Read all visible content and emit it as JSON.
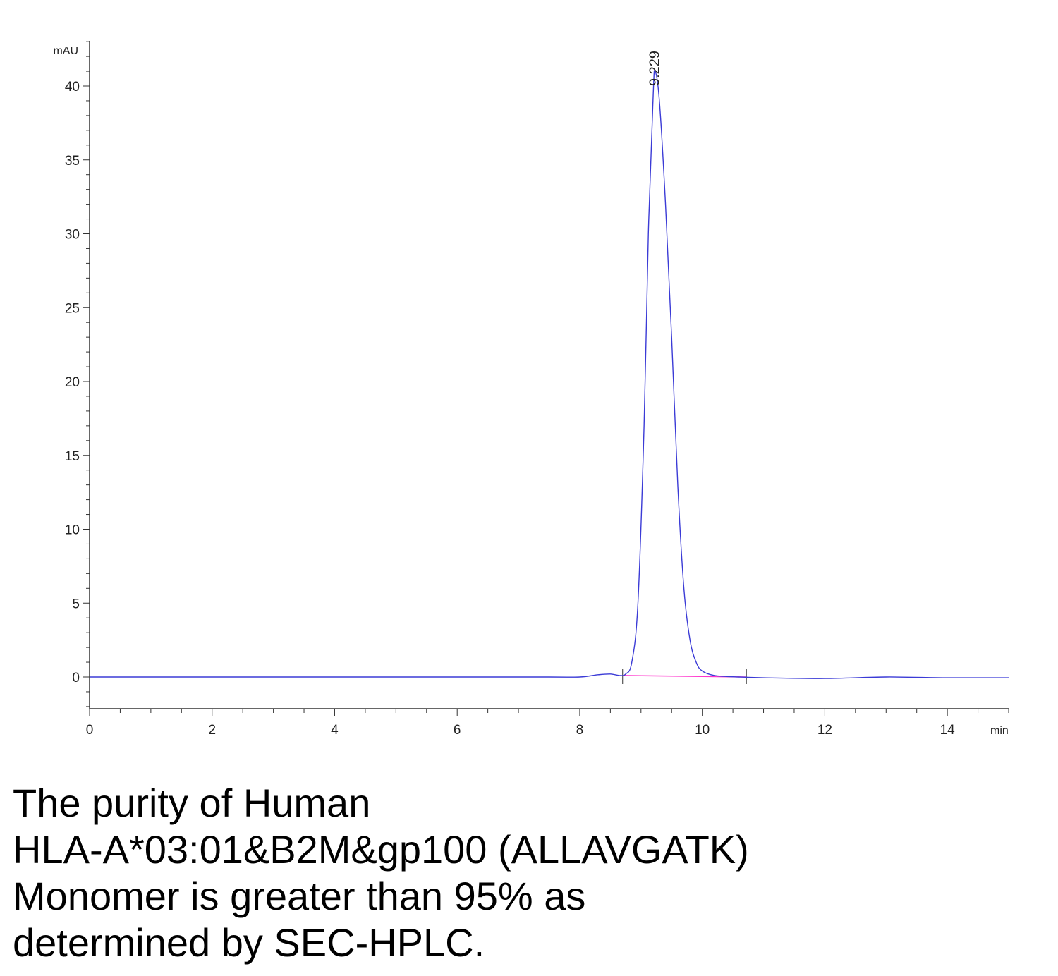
{
  "chart_data": {
    "type": "line",
    "ylabel": "mAU",
    "xlabel": "min",
    "xlim": [
      0,
      15
    ],
    "ylim": [
      -2,
      43
    ],
    "x_ticks": [
      "0",
      "2",
      "4",
      "6",
      "8",
      "10",
      "12",
      "14"
    ],
    "y_ticks": [
      "0",
      "5",
      "10",
      "15",
      "20",
      "25",
      "30",
      "35",
      "40"
    ],
    "grid": false,
    "series": [
      {
        "color": "#3b3bd6",
        "points": [
          [
            0,
            0.0
          ],
          [
            2,
            0.0
          ],
          [
            4,
            0.0
          ],
          [
            6,
            0.0
          ],
          [
            7.5,
            0.0
          ],
          [
            8.0,
            0.0
          ],
          [
            8.3,
            0.15
          ],
          [
            8.5,
            0.2
          ],
          [
            8.65,
            0.1
          ],
          [
            8.75,
            0.2
          ],
          [
            8.85,
            1.0
          ],
          [
            8.95,
            5.0
          ],
          [
            9.05,
            17.0
          ],
          [
            9.12,
            30.0
          ],
          [
            9.2,
            39.5
          ],
          [
            9.229,
            41.0
          ],
          [
            9.3,
            39.0
          ],
          [
            9.4,
            32.0
          ],
          [
            9.5,
            23.0
          ],
          [
            9.6,
            13.0
          ],
          [
            9.7,
            6.0
          ],
          [
            9.8,
            2.5
          ],
          [
            9.9,
            1.0
          ],
          [
            10.0,
            0.4
          ],
          [
            10.2,
            0.1
          ],
          [
            10.6,
            0.0
          ],
          [
            11.0,
            -0.05
          ],
          [
            12.0,
            -0.1
          ],
          [
            13.0,
            0.0
          ],
          [
            14.0,
            -0.05
          ],
          [
            15.0,
            -0.05
          ]
        ]
      }
    ],
    "baseline": {
      "color": "#ff33cc",
      "x": [
        8.7,
        10.72
      ],
      "y": [
        0.1,
        0.0
      ]
    },
    "peak_markers": [
      8.7,
      10.72
    ],
    "annotations": [
      {
        "label": "9.229",
        "x": 9.229,
        "y": 41.0
      }
    ]
  },
  "caption": {
    "lines": [
      "The purity of Human",
      "HLA-A*03:01&B2M&gp100 (ALLAVGATK)",
      "Monomer is greater than 95% as",
      "determined by SEC-HPLC."
    ]
  }
}
